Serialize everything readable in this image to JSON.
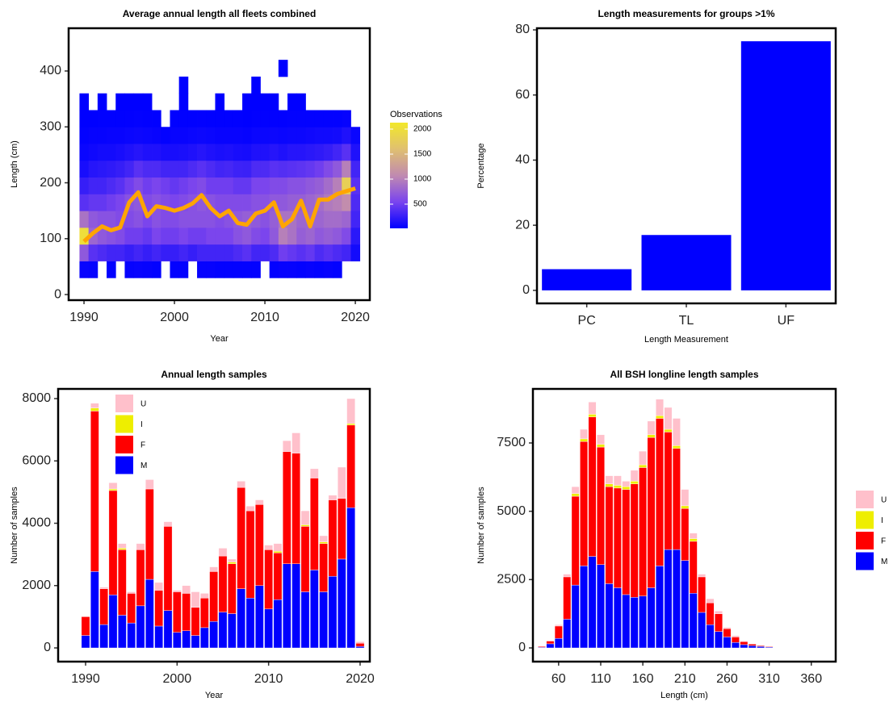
{
  "chart_data": [
    {
      "type": "heatmap",
      "title": "Average annual length all fleets combined",
      "x_label": "Year",
      "y_label": "Length (cm)",
      "x": [
        1990,
        1991,
        1992,
        1993,
        1994,
        1995,
        1996,
        1997,
        1998,
        1999,
        2000,
        2001,
        2002,
        2003,
        2004,
        2005,
        2006,
        2007,
        2008,
        2009,
        2010,
        2011,
        2012,
        2013,
        2014,
        2015,
        2016,
        2017,
        2018,
        2019,
        2020
      ],
      "y_bins": [
        30,
        60,
        90,
        120,
        150,
        180,
        210,
        240,
        270,
        300,
        330,
        360,
        390,
        420
      ],
      "values": [
        [
          50,
          700,
          2000,
          900,
          400,
          250,
          120,
          60,
          30,
          15,
          5,
          null,
          null
        ],
        [
          40,
          400,
          800,
          700,
          450,
          300,
          180,
          80,
          40,
          15,
          null,
          null,
          null
        ],
        [
          null,
          350,
          700,
          650,
          450,
          300,
          200,
          100,
          40,
          20,
          5,
          null,
          null
        ],
        [
          30,
          300,
          650,
          650,
          500,
          350,
          220,
          100,
          50,
          20,
          null,
          null,
          null
        ],
        [
          null,
          300,
          600,
          600,
          550,
          400,
          250,
          120,
          50,
          20,
          5,
          null,
          null
        ],
        [
          40,
          250,
          500,
          600,
          650,
          500,
          300,
          150,
          60,
          25,
          10,
          null,
          null
        ],
        [
          50,
          300,
          500,
          650,
          700,
          600,
          400,
          180,
          70,
          30,
          10,
          null,
          null
        ],
        [
          40,
          250,
          450,
          550,
          600,
          500,
          350,
          150,
          60,
          25,
          5,
          null,
          null
        ],
        [
          30,
          300,
          550,
          650,
          650,
          550,
          350,
          150,
          50,
          20,
          null,
          null,
          null
        ],
        [
          null,
          250,
          500,
          600,
          600,
          500,
          300,
          120,
          30,
          null,
          null,
          null,
          null
        ],
        [
          30,
          250,
          500,
          600,
          550,
          450,
          300,
          120,
          50,
          20,
          null,
          null,
          null
        ],
        [
          30,
          300,
          550,
          650,
          600,
          500,
          300,
          130,
          50,
          20,
          5,
          5,
          null
        ],
        [
          null,
          250,
          500,
          650,
          650,
          550,
          350,
          150,
          60,
          20,
          null,
          null,
          null
        ],
        [
          40,
          300,
          500,
          650,
          700,
          600,
          400,
          180,
          70,
          25,
          null,
          null,
          null
        ],
        [
          40,
          300,
          550,
          650,
          650,
          500,
          350,
          150,
          60,
          20,
          null,
          null,
          null
        ],
        [
          30,
          300,
          550,
          600,
          600,
          500,
          300,
          130,
          50,
          20,
          5,
          null,
          null
        ],
        [
          30,
          300,
          550,
          650,
          600,
          500,
          320,
          140,
          50,
          20,
          null,
          null,
          null
        ],
        [
          30,
          350,
          650,
          700,
          600,
          450,
          280,
          120,
          50,
          20,
          null,
          null,
          null
        ],
        [
          30,
          400,
          700,
          750,
          600,
          450,
          270,
          110,
          40,
          15,
          5,
          null,
          null
        ],
        [
          30,
          300,
          600,
          700,
          650,
          550,
          350,
          150,
          60,
          25,
          10,
          5,
          null
        ],
        [
          null,
          300,
          550,
          650,
          650,
          550,
          350,
          150,
          60,
          25,
          10,
          null,
          null
        ],
        [
          30,
          350,
          700,
          750,
          700,
          600,
          400,
          180,
          70,
          25,
          10,
          null,
          null
        ],
        [
          40,
          500,
          1000,
          900,
          700,
          600,
          380,
          150,
          60,
          25,
          null,
          null,
          5
        ],
        [
          40,
          450,
          900,
          900,
          750,
          650,
          400,
          180,
          70,
          30,
          10,
          null,
          null
        ],
        [
          30,
          400,
          750,
          800,
          750,
          650,
          420,
          180,
          70,
          30,
          10,
          null,
          null
        ],
        [
          40,
          450,
          800,
          800,
          800,
          700,
          450,
          200,
          80,
          30,
          null,
          null,
          null
        ],
        [
          30,
          350,
          700,
          800,
          850,
          750,
          500,
          220,
          90,
          30,
          null,
          null,
          null
        ],
        [
          40,
          400,
          750,
          850,
          950,
          850,
          600,
          250,
          90,
          30,
          null,
          null,
          null
        ],
        [
          30,
          350,
          700,
          850,
          1000,
          1000,
          700,
          300,
          100,
          30,
          null,
          null,
          null
        ],
        [
          null,
          300,
          600,
          800,
          1100,
          1800,
          1000,
          400,
          150,
          40,
          null,
          null,
          null
        ],
        [
          null,
          100,
          200,
          300,
          350,
          400,
          300,
          150,
          60,
          null,
          null,
          null,
          null
        ]
      ],
      "line_values": [
        95,
        110,
        122,
        115,
        120,
        165,
        183,
        140,
        158,
        155,
        150,
        155,
        163,
        178,
        155,
        140,
        150,
        128,
        125,
        145,
        150,
        165,
        122,
        135,
        168,
        122,
        170,
        170,
        180,
        185,
        190
      ],
      "line_color": "#ffa500",
      "xlim": [
        1988.3,
        2021.6
      ],
      "xticks": [
        1990,
        2000,
        2010,
        2020
      ],
      "ylim": [
        -10,
        476.5
      ],
      "yticks": [
        0,
        100,
        200,
        300,
        400
      ],
      "colorbar": {
        "title": "Observations",
        "lim": [
          16,
          2129
        ],
        "ticks": [
          500,
          1000,
          1500,
          2000
        ],
        "colors": [
          "#0000ff",
          "#7a44ee",
          "#c08ab0",
          "#e0c070",
          "#f2e82a"
        ]
      }
    },
    {
      "type": "bar",
      "title": "Length measurements for groups >1%",
      "x_label": "Length Measurement",
      "y_label": "Percentage",
      "categories": [
        "PC",
        "TL",
        "UF"
      ],
      "values": [
        6.5,
        17,
        76.5
      ],
      "color": "#0000ff",
      "ylim": [
        -4,
        80.5
      ],
      "yticks": [
        0,
        20,
        40,
        60,
        80
      ]
    },
    {
      "type": "stacked_bar",
      "title": "Annual length samples",
      "x_label": "Year",
      "y_label": "Number of samples",
      "x": [
        1990,
        1991,
        1992,
        1993,
        1994,
        1995,
        1996,
        1997,
        1998,
        1999,
        2000,
        2001,
        2002,
        2003,
        2004,
        2005,
        2006,
        2007,
        2008,
        2009,
        2010,
        2011,
        2012,
        2013,
        2014,
        2015,
        2016,
        2017,
        2018,
        2019,
        2020
      ],
      "series": [
        {
          "name": "M",
          "color": "#0000ff",
          "values": [
            400,
            2450,
            750,
            1700,
            1050,
            800,
            1350,
            2200,
            700,
            1200,
            500,
            550,
            400,
            650,
            850,
            1150,
            1100,
            1900,
            1600,
            2000,
            1250,
            1550,
            2700,
            2700,
            1800,
            2500,
            1800,
            2300,
            2850,
            4500,
            50
          ]
        },
        {
          "name": "F",
          "color": "#ff0000",
          "values": [
            600,
            5150,
            1150,
            3350,
            2100,
            950,
            1800,
            2900,
            1150,
            2700,
            1300,
            1200,
            900,
            950,
            1600,
            1800,
            1600,
            3250,
            2800,
            2600,
            1900,
            1500,
            3600,
            3550,
            2100,
            2950,
            1550,
            2450,
            1950,
            2650,
            100
          ]
        },
        {
          "name": "I",
          "color": "#eeee00",
          "values": [
            0,
            100,
            0,
            50,
            50,
            0,
            0,
            0,
            0,
            0,
            0,
            0,
            0,
            0,
            0,
            0,
            50,
            0,
            0,
            0,
            0,
            50,
            0,
            0,
            50,
            0,
            50,
            0,
            0,
            50,
            0
          ]
        },
        {
          "name": "U",
          "color": "#ffc0cb",
          "values": [
            0,
            150,
            50,
            200,
            150,
            50,
            200,
            300,
            250,
            150,
            50,
            250,
            500,
            150,
            150,
            250,
            100,
            200,
            150,
            150,
            150,
            250,
            350,
            650,
            450,
            300,
            200,
            150,
            1000,
            800,
            50
          ]
        }
      ],
      "xlim": [
        1987,
        2021.06
      ],
      "xticks": [
        1990,
        2000,
        2010,
        2020
      ],
      "ylim": [
        -440,
        8311
      ],
      "yticks": [
        0,
        2000,
        4000,
        6000,
        8000
      ],
      "legend": "top-left"
    },
    {
      "type": "stacked_histogram",
      "title": "All BSH longline length samples",
      "x_label": "Length (cm)",
      "y_label": "Number of samples",
      "bins": [
        35,
        45,
        55,
        65,
        75,
        85,
        95,
        105,
        115,
        125,
        135,
        145,
        155,
        165,
        175,
        185,
        195,
        205,
        215,
        225,
        235,
        245,
        255,
        265,
        275,
        285,
        295,
        305,
        315
      ],
      "series": [
        {
          "name": "M",
          "color": "#0000ff",
          "values": [
            20,
            150,
            350,
            1050,
            2300,
            3000,
            3350,
            3050,
            2350,
            2200,
            1950,
            1850,
            1900,
            2200,
            3000,
            3600,
            3600,
            3200,
            2000,
            1300,
            850,
            600,
            400,
            200,
            120,
            80,
            50,
            30
          ]
        },
        {
          "name": "F",
          "color": "#ff0000",
          "values": [
            30,
            100,
            450,
            1550,
            3250,
            4550,
            5100,
            4300,
            3550,
            3650,
            3850,
            4150,
            4700,
            5500,
            5400,
            4300,
            3700,
            1900,
            1900,
            1300,
            800,
            650,
            300,
            200,
            110,
            60,
            30,
            20
          ]
        },
        {
          "name": "I",
          "color": "#eeee00",
          "values": [
            0,
            0,
            0,
            0,
            100,
            100,
            100,
            100,
            100,
            100,
            100,
            100,
            100,
            100,
            100,
            100,
            100,
            100,
            100,
            0,
            0,
            0,
            0,
            0,
            0,
            0,
            0,
            0
          ]
        },
        {
          "name": "U",
          "color": "#ffc0cb",
          "values": [
            0,
            0,
            50,
            100,
            250,
            350,
            450,
            350,
            300,
            350,
            200,
            400,
            500,
            500,
            600,
            800,
            1000,
            600,
            200,
            100,
            150,
            100,
            50,
            50,
            20,
            10,
            0,
            0
          ]
        }
      ],
      "xlim": [
        29.5,
        389
      ],
      "xticks": [
        60,
        110,
        160,
        210,
        260,
        310,
        360
      ],
      "ylim": [
        -502,
        9478
      ],
      "yticks": [
        0,
        2500,
        5000,
        7500
      ],
      "legend": "right"
    }
  ]
}
